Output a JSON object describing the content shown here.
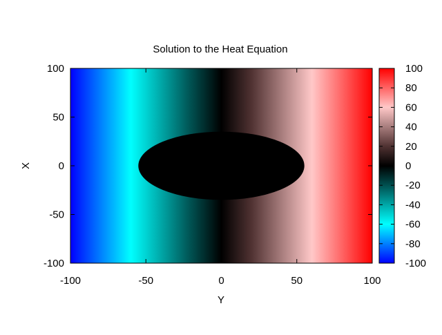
{
  "chart_data": {
    "type": "heatmap",
    "title": "Solution to the Heat Equation",
    "xlabel": "Y",
    "ylabel": "X",
    "xlim": [
      -100,
      100
    ],
    "ylim": [
      -100,
      100
    ],
    "x_ticks": [
      -100,
      -50,
      0,
      50,
      100
    ],
    "y_ticks": [
      -100,
      -50,
      0,
      50,
      100
    ],
    "colorbar": {
      "range": [
        -100,
        100
      ],
      "ticks": [
        -100,
        -80,
        -60,
        -40,
        -20,
        0,
        20,
        40,
        60,
        80,
        100
      ],
      "stops": [
        {
          "value": -100,
          "color": "#0000ff"
        },
        {
          "value": -60,
          "color": "#00ffff"
        },
        {
          "value": -20,
          "color": "#005050"
        },
        {
          "value": 0,
          "color": "#000000"
        },
        {
          "value": 20,
          "color": "#503232"
        },
        {
          "value": 60,
          "color": "#ffc8c8"
        },
        {
          "value": 100,
          "color": "#ff0000"
        }
      ]
    },
    "field": {
      "description_values": "value ≈ Y outside the central region; 0 inside the ellipse centered at (0,0) with half-widths 55 (Y) and 35 (X)",
      "inner_region": {
        "center": [
          0,
          0
        ],
        "semi_axis_y": 55,
        "semi_axis_x": 35,
        "value": 0
      }
    },
    "grid": false,
    "legend": "colorbar-right"
  }
}
